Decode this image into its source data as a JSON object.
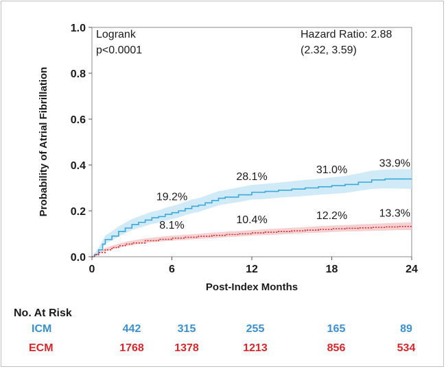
{
  "chart_data": {
    "type": "line",
    "title": "",
    "xlabel": "Post-Index Months",
    "ylabel": "Probability of Atrial Fibrillation",
    "xlim": [
      0,
      24
    ],
    "ylim": [
      0,
      1.0
    ],
    "x_ticks": [
      "0",
      "6",
      "12",
      "18",
      "24"
    ],
    "y_ticks": [
      "0.0",
      "0.2",
      "0.4",
      "0.6",
      "0.8",
      "1.0"
    ],
    "logrank_label": "Logrank",
    "logrank_p": "p<0.0001",
    "hazard_ratio_label": "Hazard Ratio: 2.88",
    "hazard_ratio_ci": "(2.32, 3.59)",
    "series": [
      {
        "name": "ICM",
        "color": "#3aa8d8",
        "band_color": "#c9e6f6",
        "x": [
          0,
          0.2,
          0.5,
          0.8,
          1,
          1.5,
          2,
          2.5,
          3,
          3.5,
          4,
          4.5,
          5,
          5.5,
          6,
          6.5,
          7,
          7.5,
          8,
          8.5,
          9,
          9.5,
          10,
          11,
          12,
          13,
          14,
          15,
          16,
          17,
          18,
          19,
          20,
          21,
          22,
          23,
          24
        ],
        "values": [
          0,
          0.01,
          0.03,
          0.055,
          0.075,
          0.09,
          0.11,
          0.125,
          0.14,
          0.15,
          0.16,
          0.17,
          0.175,
          0.185,
          0.192,
          0.2,
          0.21,
          0.22,
          0.225,
          0.235,
          0.245,
          0.255,
          0.26,
          0.27,
          0.281,
          0.285,
          0.29,
          0.295,
          0.3,
          0.305,
          0.31,
          0.315,
          0.325,
          0.335,
          0.339,
          0.339,
          0.339
        ],
        "ci_halfwidth": [
          0,
          0.005,
          0.01,
          0.015,
          0.018,
          0.02,
          0.022,
          0.023,
          0.024,
          0.025,
          0.026,
          0.027,
          0.027,
          0.028,
          0.028,
          0.029,
          0.029,
          0.03,
          0.03,
          0.03,
          0.031,
          0.031,
          0.031,
          0.032,
          0.032,
          0.033,
          0.033,
          0.034,
          0.035,
          0.035,
          0.036,
          0.037,
          0.038,
          0.04,
          0.041,
          0.042,
          0.043
        ],
        "labels": [
          {
            "x": 6,
            "value": 0.192,
            "text": "19.2%"
          },
          {
            "x": 12,
            "value": 0.281,
            "text": "28.1%"
          },
          {
            "x": 18,
            "value": 0.31,
            "text": "31.0%"
          },
          {
            "x": 24,
            "value": 0.339,
            "text": "33.9%"
          }
        ]
      },
      {
        "name": "ECM",
        "color": "#d7262b",
        "band_color": "#f6c9c9",
        "x": [
          0,
          0.2,
          0.5,
          1,
          1.5,
          2,
          2.5,
          3,
          4,
          5,
          6,
          7,
          8,
          9,
          10,
          11,
          12,
          13,
          14,
          15,
          16,
          17,
          18,
          19,
          20,
          21,
          22,
          23,
          24
        ],
        "values": [
          0,
          0.008,
          0.018,
          0.03,
          0.04,
          0.048,
          0.055,
          0.06,
          0.07,
          0.076,
          0.081,
          0.085,
          0.089,
          0.093,
          0.097,
          0.1,
          0.104,
          0.107,
          0.11,
          0.113,
          0.116,
          0.119,
          0.122,
          0.124,
          0.126,
          0.128,
          0.13,
          0.132,
          0.133
        ],
        "ci_halfwidth": [
          0,
          0.003,
          0.005,
          0.007,
          0.008,
          0.009,
          0.009,
          0.01,
          0.01,
          0.01,
          0.011,
          0.011,
          0.011,
          0.012,
          0.012,
          0.012,
          0.012,
          0.013,
          0.013,
          0.013,
          0.013,
          0.014,
          0.014,
          0.014,
          0.015,
          0.015,
          0.016,
          0.016,
          0.017
        ],
        "labels": [
          {
            "x": 6,
            "value": 0.081,
            "text": "8.1%"
          },
          {
            "x": 12,
            "value": 0.104,
            "text": "10.4%"
          },
          {
            "x": 18,
            "value": 0.122,
            "text": "12.2%"
          },
          {
            "x": 24,
            "value": 0.133,
            "text": "13.3%"
          }
        ]
      }
    ]
  },
  "risk_table": {
    "title": "No. At Risk",
    "rows": [
      {
        "label": "ICM",
        "color": "#3a8fd0",
        "values": [
          "442",
          "315",
          "255",
          "165",
          "89"
        ]
      },
      {
        "label": "ECM",
        "color": "#d7262b",
        "values": [
          "1768",
          "1378",
          "1213",
          "856",
          "534"
        ]
      }
    ]
  }
}
